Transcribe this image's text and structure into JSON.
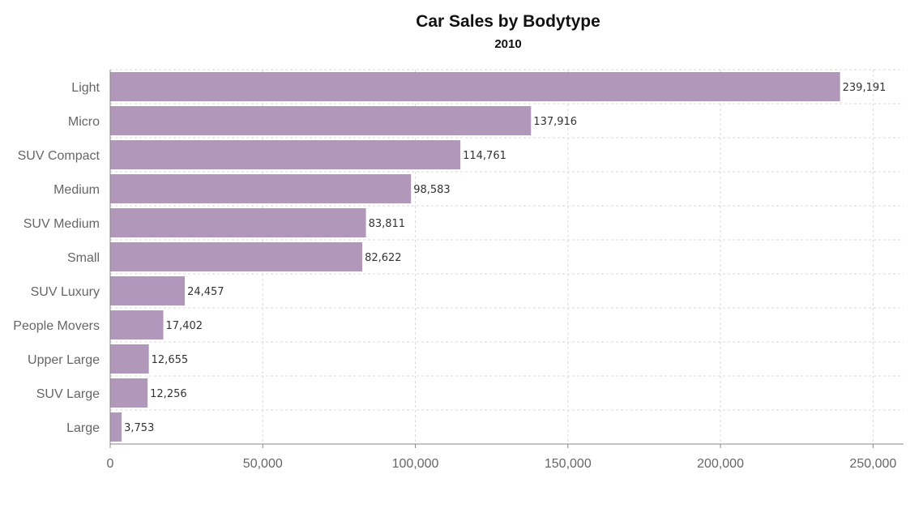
{
  "chart_data": {
    "type": "bar",
    "orientation": "horizontal",
    "title": "Car Sales by Bodytype",
    "subtitle": "2010",
    "xlabel": "",
    "ylabel": "",
    "categories": [
      "Light",
      "Micro",
      "SUV Compact",
      "Medium",
      "SUV Medium",
      "Small",
      "SUV Luxury",
      "People Movers",
      "Upper Large",
      "SUV Large",
      "Large"
    ],
    "values": [
      239191,
      137916,
      114761,
      98583,
      83811,
      82622,
      24457,
      17402,
      12655,
      12256,
      3753
    ],
    "value_labels": [
      "239,191",
      "137,916",
      "114,761",
      "98,583",
      "83,811",
      "82,622",
      "24,457",
      "17,402",
      "12,655",
      "12,256",
      "3,753"
    ],
    "xlim": [
      0,
      260000
    ],
    "x_ticks": [
      0,
      50000,
      100000,
      150000,
      200000,
      250000
    ],
    "x_tick_labels": [
      "0",
      "50,000",
      "100,000",
      "150,000",
      "200,000",
      "250,000"
    ],
    "grid": true,
    "bar_color": "#b197b9"
  }
}
